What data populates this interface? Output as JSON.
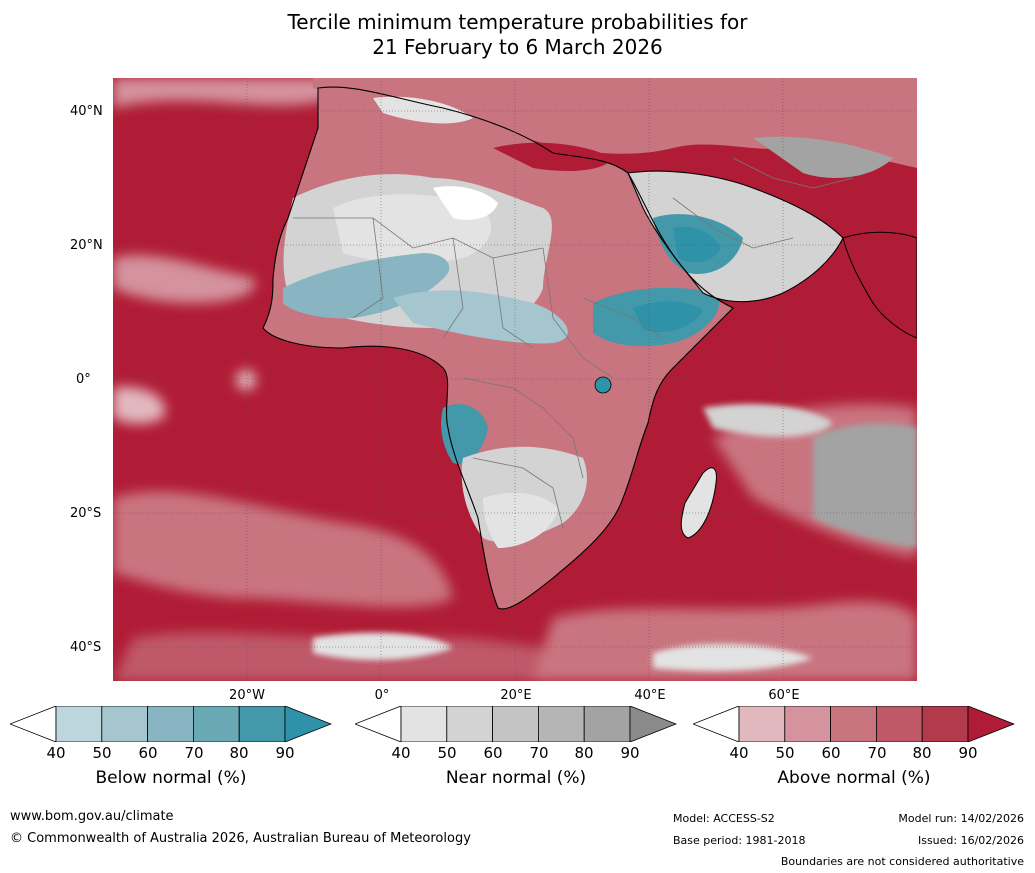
{
  "title": {
    "line1": "Tercile minimum temperature probabilities for",
    "line2": "21 February to 6 March 2026"
  },
  "map": {
    "lat_labels": [
      "40°N",
      "20°N",
      "0°",
      "20°S",
      "40°S"
    ],
    "lon_labels": [
      "20°W",
      "0°",
      "20°E",
      "40°E",
      "60°E"
    ]
  },
  "colorbars": [
    {
      "label": "Below normal (%)",
      "ticks": [
        "40",
        "50",
        "60",
        "70",
        "80",
        "90"
      ],
      "colors": [
        "#ffffff",
        "#bdd5dc",
        "#a5c6ce",
        "#88b5c1",
        "#69a9b6",
        "#4398aa",
        "#2e92a8"
      ]
    },
    {
      "label": "Near normal (%)",
      "ticks": [
        "40",
        "50",
        "60",
        "70",
        "80",
        "90"
      ],
      "colors": [
        "#ffffff",
        "#e3e3e3",
        "#d3d3d3",
        "#c4c4c4",
        "#b5b5b5",
        "#a3a3a3",
        "#8a8a8a"
      ]
    },
    {
      "label": "Above normal (%)",
      "ticks": [
        "40",
        "50",
        "60",
        "70",
        "80",
        "90"
      ],
      "colors": [
        "#ffffff",
        "#e2b8bf",
        "#d4939d",
        "#c97580",
        "#bf5969",
        "#b33a4d",
        "#b01c35"
      ]
    }
  ],
  "footer": {
    "website": "www.bom.gov.au/climate",
    "copyright": "© Commonwealth of Australia 2026, Australian Bureau of Meteorology",
    "model": "Model: ACCESS-S2",
    "base_period": "Base period: 1981-2018",
    "model_run": "Model run: 14/02/2026",
    "issued": "Issued: 16/02/2026",
    "disclaimer": "Boundaries are not considered authoritative"
  }
}
